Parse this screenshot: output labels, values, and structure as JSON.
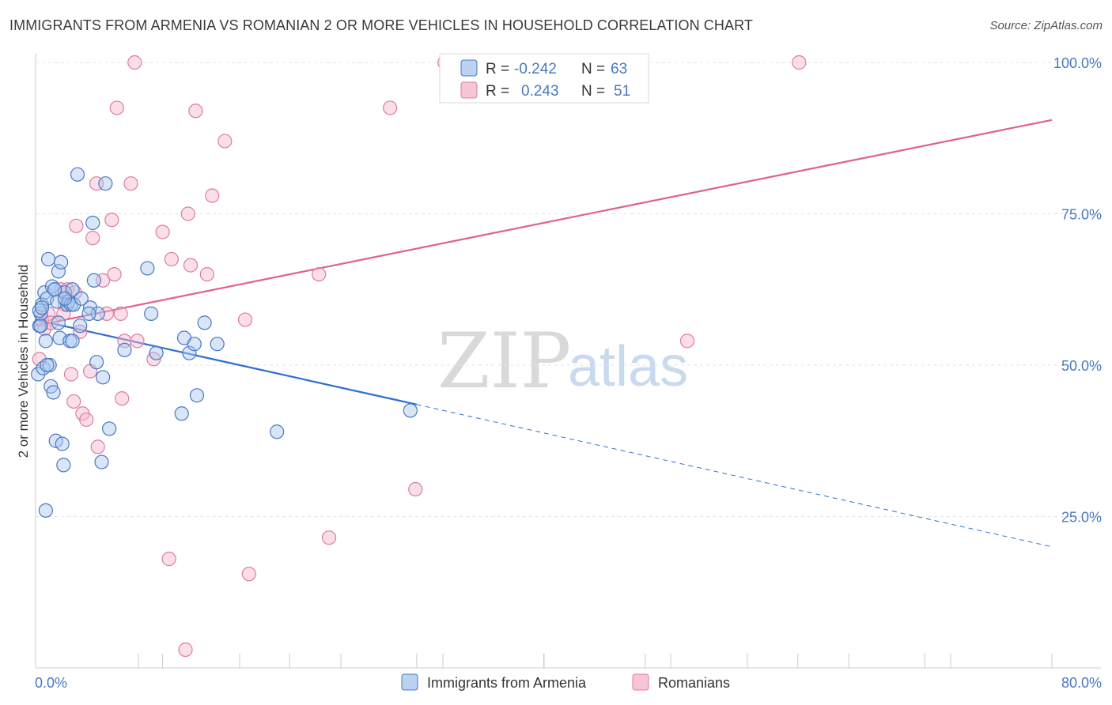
{
  "title": "IMMIGRANTS FROM ARMENIA VS ROMANIAN 2 OR MORE VEHICLES IN HOUSEHOLD CORRELATION CHART",
  "source": "Source: ZipAtlas.com",
  "watermark": {
    "zip": "ZIP",
    "atlas": "atlas"
  },
  "colors": {
    "blue": "#4a78c0",
    "blue_fill": "#a9c8f0",
    "blue_line": "#2f6fd0",
    "pink": "#e07aa0",
    "pink_fill": "#f5b8cc",
    "pink_line": "#e0608f",
    "grid": "#e4e4e4"
  },
  "legend": {
    "rows": [
      {
        "r_label": "R =",
        "r_value": "-0.242",
        "n_label": "N =",
        "n_value": "63"
      },
      {
        "r_label": "R =",
        "r_value": "0.243",
        "n_label": "N =",
        "n_value": "51"
      }
    ]
  },
  "chart_data": {
    "type": "scatter",
    "title": "IMMIGRANTS FROM ARMENIA VS ROMANIAN 2 OR MORE VEHICLES IN HOUSEHOLD CORRELATION CHART",
    "xlabel": "",
    "ylabel": "2 or more Vehicles in Household",
    "xlim": [
      0,
      80
    ],
    "ylim": [
      0,
      100
    ],
    "x_tick_labels": [
      "0.0%",
      "80.0%"
    ],
    "y_tick_labels": [
      "100.0%",
      "75.0%",
      "50.0%",
      "25.0%"
    ],
    "y_ticks": [
      100,
      75,
      50,
      25
    ],
    "grid": true,
    "legend_position": "top-center",
    "series": [
      {
        "name": "Immigrants from Armenia",
        "r": -0.242,
        "n": 63,
        "trend": {
          "x0": 0,
          "y0": 57.5,
          "x1": 30,
          "y1": 43.5,
          "dashed_to_x": 80,
          "dashed_to_y": 20
        },
        "points": [
          [
            0.2,
            48.5
          ],
          [
            0.3,
            56.5
          ],
          [
            0.4,
            58.5
          ],
          [
            0.5,
            60
          ],
          [
            0.6,
            49.5
          ],
          [
            0.7,
            62
          ],
          [
            0.8,
            54
          ],
          [
            0.9,
            61
          ],
          [
            1.0,
            67.5
          ],
          [
            1.1,
            50
          ],
          [
            1.2,
            46.5
          ],
          [
            1.3,
            63
          ],
          [
            1.4,
            45.5
          ],
          [
            1.5,
            62.5
          ],
          [
            1.6,
            37.5
          ],
          [
            1.7,
            60.5
          ],
          [
            1.8,
            65.5
          ],
          [
            1.9,
            54.5
          ],
          [
            2.0,
            67
          ],
          [
            2.1,
            37
          ],
          [
            2.2,
            33.5
          ],
          [
            2.3,
            62
          ],
          [
            2.5,
            60
          ],
          [
            2.6,
            60.5
          ],
          [
            2.7,
            54
          ],
          [
            2.8,
            60
          ],
          [
            2.9,
            62.5
          ],
          [
            3.0,
            60
          ],
          [
            3.3,
            81.5
          ],
          [
            3.5,
            56.5
          ],
          [
            4.3,
            59.5
          ],
          [
            4.5,
            73.5
          ],
          [
            4.6,
            64
          ],
          [
            4.8,
            50.5
          ],
          [
            4.9,
            58.5
          ],
          [
            5.3,
            48
          ],
          [
            5.5,
            80
          ],
          [
            5.8,
            39.5
          ],
          [
            7.0,
            52.5
          ],
          [
            8.8,
            66
          ],
          [
            9.1,
            58.5
          ],
          [
            9.5,
            52
          ],
          [
            11.5,
            42
          ],
          [
            11.7,
            54.5
          ],
          [
            12.1,
            52
          ],
          [
            12.5,
            53.5
          ],
          [
            12.7,
            45
          ],
          [
            13.3,
            57
          ],
          [
            14.3,
            53.5
          ],
          [
            19.0,
            39
          ],
          [
            29.5,
            42.5
          ],
          [
            0.3,
            59
          ],
          [
            0.8,
            26
          ],
          [
            0.5,
            59.5
          ],
          [
            0.9,
            50
          ],
          [
            1.5,
            62.5
          ],
          [
            2.3,
            61
          ],
          [
            5.2,
            34
          ],
          [
            4.2,
            58.5
          ],
          [
            0.4,
            56.5
          ],
          [
            1.8,
            57
          ],
          [
            2.9,
            54
          ],
          [
            3.6,
            61
          ]
        ]
      },
      {
        "name": "Romanians",
        "r": 0.243,
        "n": 51,
        "trend": {
          "x0": 0,
          "y0": 56.5,
          "x1": 80,
          "y1": 90.5
        },
        "points": [
          [
            0.3,
            51
          ],
          [
            0.5,
            57.5
          ],
          [
            0.7,
            56
          ],
          [
            1.0,
            58.5
          ],
          [
            1.2,
            57
          ],
          [
            2.0,
            62.5
          ],
          [
            2.3,
            60
          ],
          [
            2.5,
            62.5
          ],
          [
            2.8,
            48.5
          ],
          [
            3.0,
            44
          ],
          [
            3.2,
            73
          ],
          [
            3.5,
            55.5
          ],
          [
            3.7,
            42
          ],
          [
            4.0,
            41
          ],
          [
            4.3,
            49
          ],
          [
            4.5,
            71
          ],
          [
            4.8,
            80
          ],
          [
            4.9,
            36.5
          ],
          [
            5.3,
            64
          ],
          [
            5.6,
            58.5
          ],
          [
            6.0,
            74
          ],
          [
            6.2,
            65
          ],
          [
            6.4,
            92.5
          ],
          [
            6.7,
            58.5
          ],
          [
            6.8,
            44.5
          ],
          [
            7.0,
            54
          ],
          [
            7.5,
            80
          ],
          [
            7.8,
            100
          ],
          [
            8.0,
            54
          ],
          [
            9.3,
            51
          ],
          [
            10.0,
            72
          ],
          [
            10.5,
            18
          ],
          [
            10.7,
            67.5
          ],
          [
            11.8,
            3
          ],
          [
            12.0,
            75
          ],
          [
            12.2,
            66.5
          ],
          [
            12.6,
            92
          ],
          [
            13.5,
            65
          ],
          [
            13.9,
            78
          ],
          [
            14.9,
            87
          ],
          [
            16.5,
            57.5
          ],
          [
            16.8,
            15.5
          ],
          [
            22.3,
            65
          ],
          [
            23.1,
            21.5
          ],
          [
            27.9,
            92.5
          ],
          [
            29.9,
            29.5
          ],
          [
            32.2,
            100
          ],
          [
            51.3,
            54
          ],
          [
            60.1,
            100
          ],
          [
            2.2,
            58.5
          ],
          [
            3.1,
            62
          ]
        ]
      }
    ]
  },
  "bottom_legend": [
    "Immigrants from Armenia",
    "Romanians"
  ]
}
